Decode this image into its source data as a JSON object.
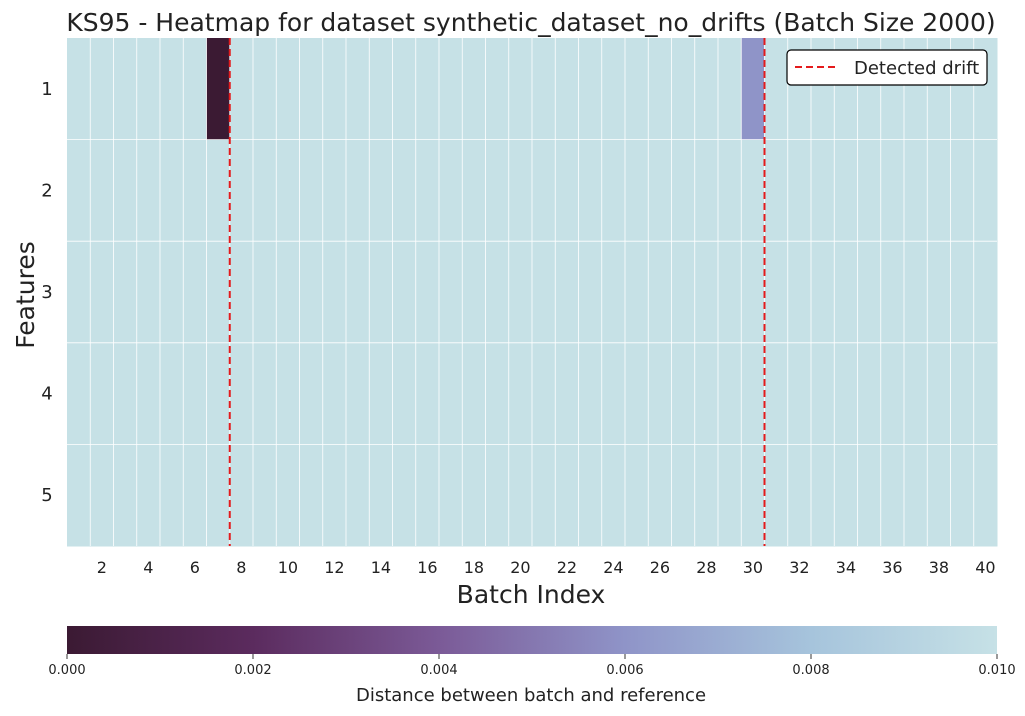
{
  "chart_data": {
    "type": "heatmap",
    "title": "KS95 - Heatmap for dataset synthetic_dataset_no_drifts (Batch Size 2000)",
    "xlabel": "Batch Index",
    "ylabel": "Features",
    "x_start": 1,
    "x_end": 40,
    "x_tick_labels": [
      "2",
      "4",
      "6",
      "8",
      "10",
      "12",
      "14",
      "16",
      "18",
      "20",
      "22",
      "24",
      "26",
      "28",
      "30",
      "32",
      "34",
      "36",
      "38",
      "40"
    ],
    "rows": [
      "1",
      "2",
      "3",
      "4",
      "5"
    ],
    "default_value": 0.01,
    "cells": [
      {
        "row": "1",
        "batch": 7,
        "value": 0.0
      },
      {
        "row": "1",
        "batch": 30,
        "value": 0.006
      }
    ],
    "detected_drifts": [
      7.5,
      30.5
    ],
    "colorbar": {
      "label": "Distance between batch and reference",
      "range": [
        0.0,
        0.01
      ],
      "ticks": [
        "0.000",
        "0.002",
        "0.004",
        "0.006",
        "0.008",
        "0.010"
      ],
      "colors": [
        "#3b1a33",
        "#5b2b5e",
        "#7b5a97",
        "#8f94c8",
        "#a6c4dc",
        "#c6e1e6"
      ]
    },
    "legend": {
      "label": "Detected drift",
      "position": "top-right",
      "color": "#e41a1c"
    },
    "grid": true
  }
}
